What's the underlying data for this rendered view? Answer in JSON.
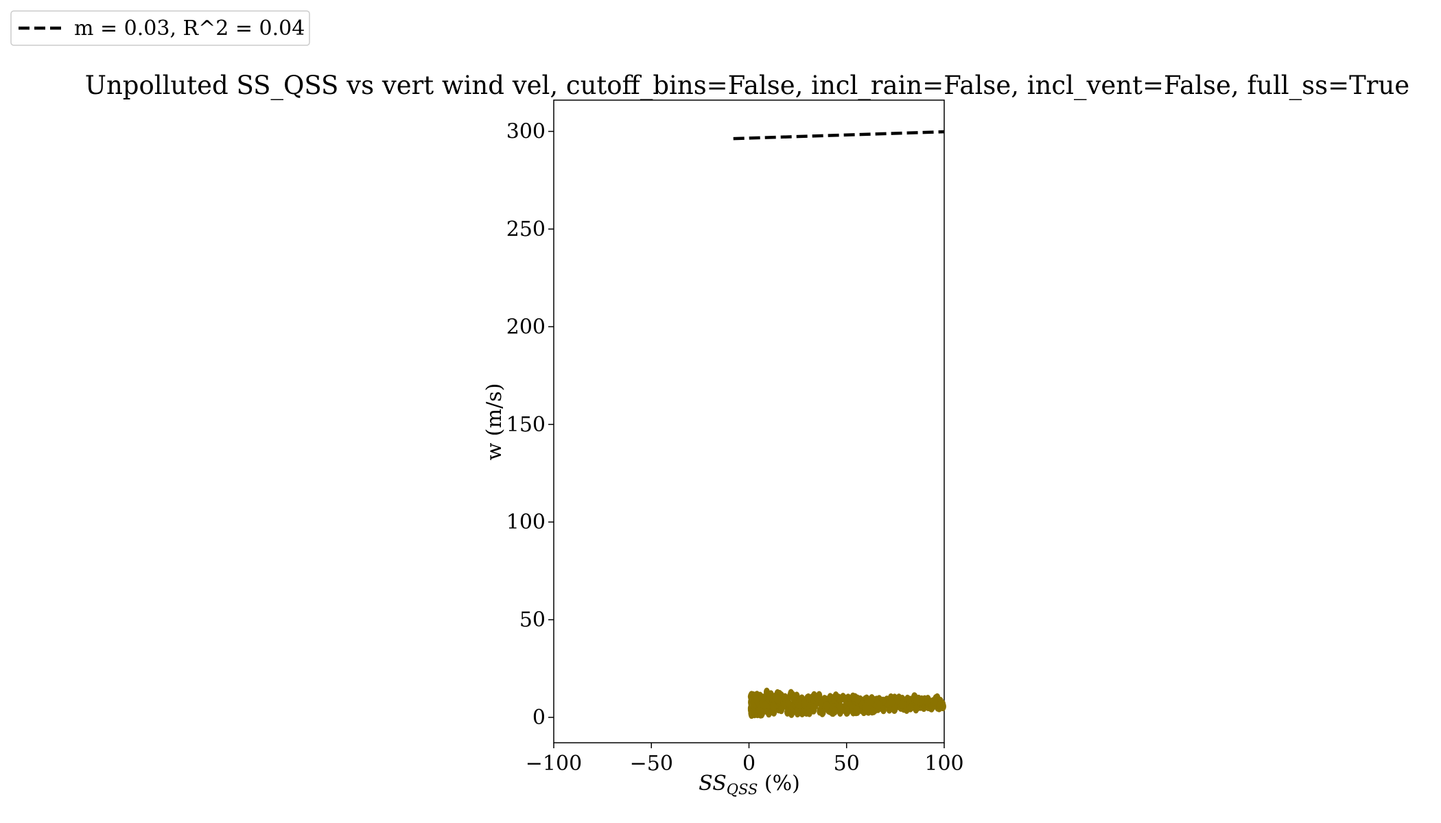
{
  "chart_data": {
    "type": "scatter",
    "title": "Unpolluted SS_QSS vs vert wind vel, cutoff_bins=False, incl_rain=False, incl_vent=False, full_ss=True",
    "xlabel_main": "SS",
    "xlabel_sub": "QSS",
    "xlabel_unit": " (%)",
    "ylabel": "w (m/s)",
    "xlim": [
      -100,
      100
    ],
    "ylim": [
      -13,
      316
    ],
    "xticks": [
      -100,
      -50,
      0,
      50,
      100
    ],
    "xtick_labels": [
      "−100",
      "−50",
      "0",
      "50",
      "100"
    ],
    "yticks": [
      0,
      50,
      100,
      150,
      200,
      250,
      300
    ],
    "ytick_labels": [
      "0",
      "50",
      "100",
      "150",
      "200",
      "250",
      "300"
    ],
    "grid": false,
    "legend_placement": "upper-left outside axes",
    "legend": [
      {
        "label": "m = 0.03, R^2 = 0.04",
        "style": "dashed",
        "color": "#000000"
      }
    ],
    "scatter_color": "#8b7300",
    "scatter_band": {
      "x_range": [
        1,
        100
      ],
      "y_lower": [
        [
          1,
          1.5
        ],
        [
          50,
          2.5
        ],
        [
          100,
          5
        ]
      ],
      "y_upper": [
        [
          1,
          11.5
        ],
        [
          5,
          12.5
        ],
        [
          30,
          11
        ],
        [
          60,
          10
        ],
        [
          100,
          10
        ]
      ]
    },
    "fit_line": {
      "x": [
        -8,
        100
      ],
      "y": [
        296.3,
        299.8
      ],
      "color": "#000000",
      "style": "dashed"
    }
  }
}
